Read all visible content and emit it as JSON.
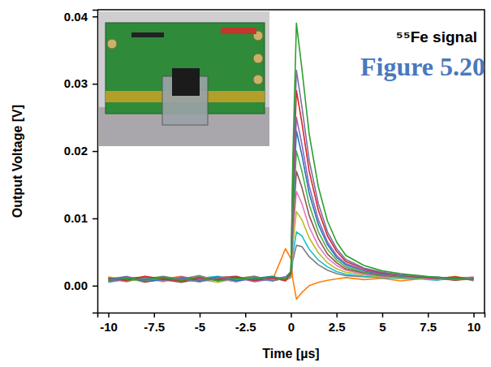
{
  "chart_data": {
    "type": "line",
    "title": "⁵⁵Fe signal",
    "annotations": [
      "Figure 5.20"
    ],
    "x_label": "Time [µs]",
    "y_label": "Output Voltage [V]",
    "xlim": [
      -10.6,
      10.6
    ],
    "xticks": [
      -10,
      -7.5,
      -5,
      -2.5,
      0,
      2.5,
      5,
      7.5,
      10
    ],
    "ylim": [
      -0.004,
      0.041
    ],
    "yticks": [
      {
        "value": 0,
        "label": "0.00"
      },
      0.01,
      0.02,
      0.03,
      0.04
    ],
    "grid": false,
    "x": [
      -10,
      -9,
      -8,
      -7,
      -6,
      -5,
      -4,
      -3,
      -2,
      -1,
      -0.3,
      0,
      0.1,
      0.3,
      0.6,
      1,
      1.5,
      2,
      2.5,
      3,
      4,
      5,
      6,
      7,
      8,
      9,
      10
    ],
    "series": [
      {
        "color": "#ff7f0e",
        "values": [
          0.0008,
          0.0012,
          0.0005,
          0.001,
          0.0014,
          0.0007,
          0.0011,
          0.0006,
          0.0013,
          0.0009,
          0.0055,
          0.004,
          0.001,
          -0.002,
          -0.001,
          0.0,
          0.0005,
          0.0008,
          0.001,
          0.0012,
          0.0009,
          0.0011,
          0.0007,
          0.001,
          0.0012,
          0.0008,
          0.001
        ]
      },
      {
        "color": "#7f7f7f",
        "values": [
          0.0011,
          0.0006,
          0.0013,
          0.0008,
          0.001,
          0.0015,
          0.0007,
          0.0012,
          0.0009,
          0.0011,
          0.0008,
          0.0012,
          0.0037,
          0.006,
          0.0058,
          0.0043,
          0.0031,
          0.0023,
          0.0018,
          0.0015,
          0.0013,
          0.0012,
          0.0011,
          0.001,
          0.0013,
          0.0009,
          0.0011
        ]
      },
      {
        "color": "#17becf",
        "values": [
          0.0005,
          0.001,
          0.0008,
          0.0013,
          0.0006,
          0.0011,
          0.0014,
          0.0008,
          0.001,
          0.0007,
          0.0012,
          0.0014,
          0.0046,
          0.008,
          0.0074,
          0.0054,
          0.0038,
          0.0028,
          0.0021,
          0.0017,
          0.0014,
          0.0012,
          0.0011,
          0.001,
          0.0008,
          0.0012,
          0.0009
        ]
      },
      {
        "color": "#bcbd22",
        "values": [
          0.0013,
          0.0009,
          0.0011,
          0.0006,
          0.0012,
          0.0009,
          0.0005,
          0.0011,
          0.0014,
          0.0008,
          0.001,
          0.0015,
          0.006,
          0.011,
          0.0098,
          0.0071,
          0.0049,
          0.0034,
          0.0025,
          0.002,
          0.0016,
          0.0013,
          0.0012,
          0.0011,
          0.001,
          0.0014,
          0.0007
        ]
      },
      {
        "color": "#e377c2",
        "values": [
          0.0009,
          0.0014,
          0.0007,
          0.0011,
          0.0008,
          0.0013,
          0.001,
          0.0006,
          0.0012,
          0.001,
          0.0013,
          0.0016,
          0.0073,
          0.014,
          0.0122,
          0.0087,
          0.0059,
          0.0041,
          0.003,
          0.0023,
          0.0017,
          0.0014,
          0.0013,
          0.0012,
          0.0009,
          0.0011,
          0.0013
        ]
      },
      {
        "color": "#8c564b",
        "values": [
          0.0007,
          0.0011,
          0.0013,
          0.0009,
          0.0005,
          0.001,
          0.0012,
          0.0014,
          0.0007,
          0.0012,
          0.0009,
          0.0017,
          0.0086,
          0.017,
          0.0146,
          0.0104,
          0.007,
          0.0047,
          0.0034,
          0.0025,
          0.0019,
          0.0015,
          0.0013,
          0.0012,
          0.0011,
          0.0008,
          0.0012
        ]
      },
      {
        "color": "#4daf4a",
        "values": [
          0.0012,
          0.0007,
          0.001,
          0.0014,
          0.0009,
          0.0006,
          0.0011,
          0.0009,
          0.0013,
          0.0008,
          0.0011,
          0.0018,
          0.01,
          0.02,
          0.017,
          0.012,
          0.008,
          0.0054,
          0.0038,
          0.0028,
          0.002,
          0.0016,
          0.0014,
          0.0012,
          0.0013,
          0.001,
          0.0009
        ]
      },
      {
        "color": "#1f77b4",
        "values": [
          0.001,
          0.0013,
          0.0006,
          0.0009,
          0.0012,
          0.0008,
          0.0013,
          0.0007,
          0.0011,
          0.0014,
          0.0008,
          0.0019,
          0.0113,
          0.023,
          0.0194,
          0.0137,
          0.0091,
          0.0061,
          0.0042,
          0.0031,
          0.0022,
          0.0017,
          0.0015,
          0.0013,
          0.0012,
          0.0009,
          0.0011
        ]
      },
      {
        "color": "#9467bd",
        "values": [
          0.0006,
          0.0009,
          0.0012,
          0.0007,
          0.0013,
          0.001,
          0.0008,
          0.0012,
          0.0006,
          0.001,
          0.0013,
          0.002,
          0.0122,
          0.025,
          0.021,
          0.0148,
          0.0098,
          0.0065,
          0.0045,
          0.0033,
          0.0023,
          0.0018,
          0.0015,
          0.0013,
          0.001,
          0.0012,
          0.0008
        ]
      },
      {
        "color": "#d62728",
        "values": [
          0.0011,
          0.0008,
          0.0014,
          0.001,
          0.0007,
          0.0012,
          0.0009,
          0.0013,
          0.0008,
          0.0012,
          0.0007,
          0.002,
          0.014,
          0.029,
          0.0242,
          0.017,
          0.0112,
          0.0074,
          0.0051,
          0.0036,
          0.0025,
          0.0019,
          0.0016,
          0.0013,
          0.0011,
          0.0013,
          0.001
        ]
      },
      {
        "color": "#7b6fa6",
        "values": [
          0.0009,
          0.0012,
          0.0008,
          0.0013,
          0.001,
          0.0006,
          0.0012,
          0.001,
          0.0014,
          0.0007,
          0.0012,
          0.0021,
          0.0154,
          0.032,
          0.0266,
          0.0186,
          0.0122,
          0.008,
          0.0055,
          0.0039,
          0.0026,
          0.002,
          0.0016,
          0.0014,
          0.0012,
          0.0009,
          0.0012
        ]
      },
      {
        "color": "#2ca02c",
        "values": [
          0.0008,
          0.0011,
          0.0009,
          0.0012,
          0.0008,
          0.0013,
          0.0007,
          0.0011,
          0.001,
          0.0013,
          0.0009,
          0.0022,
          0.0186,
          0.039,
          0.0322,
          0.0225,
          0.0147,
          0.0096,
          0.0065,
          0.0045,
          0.003,
          0.0022,
          0.0018,
          0.0015,
          0.0012,
          0.0011,
          0.0009
        ]
      }
    ]
  }
}
